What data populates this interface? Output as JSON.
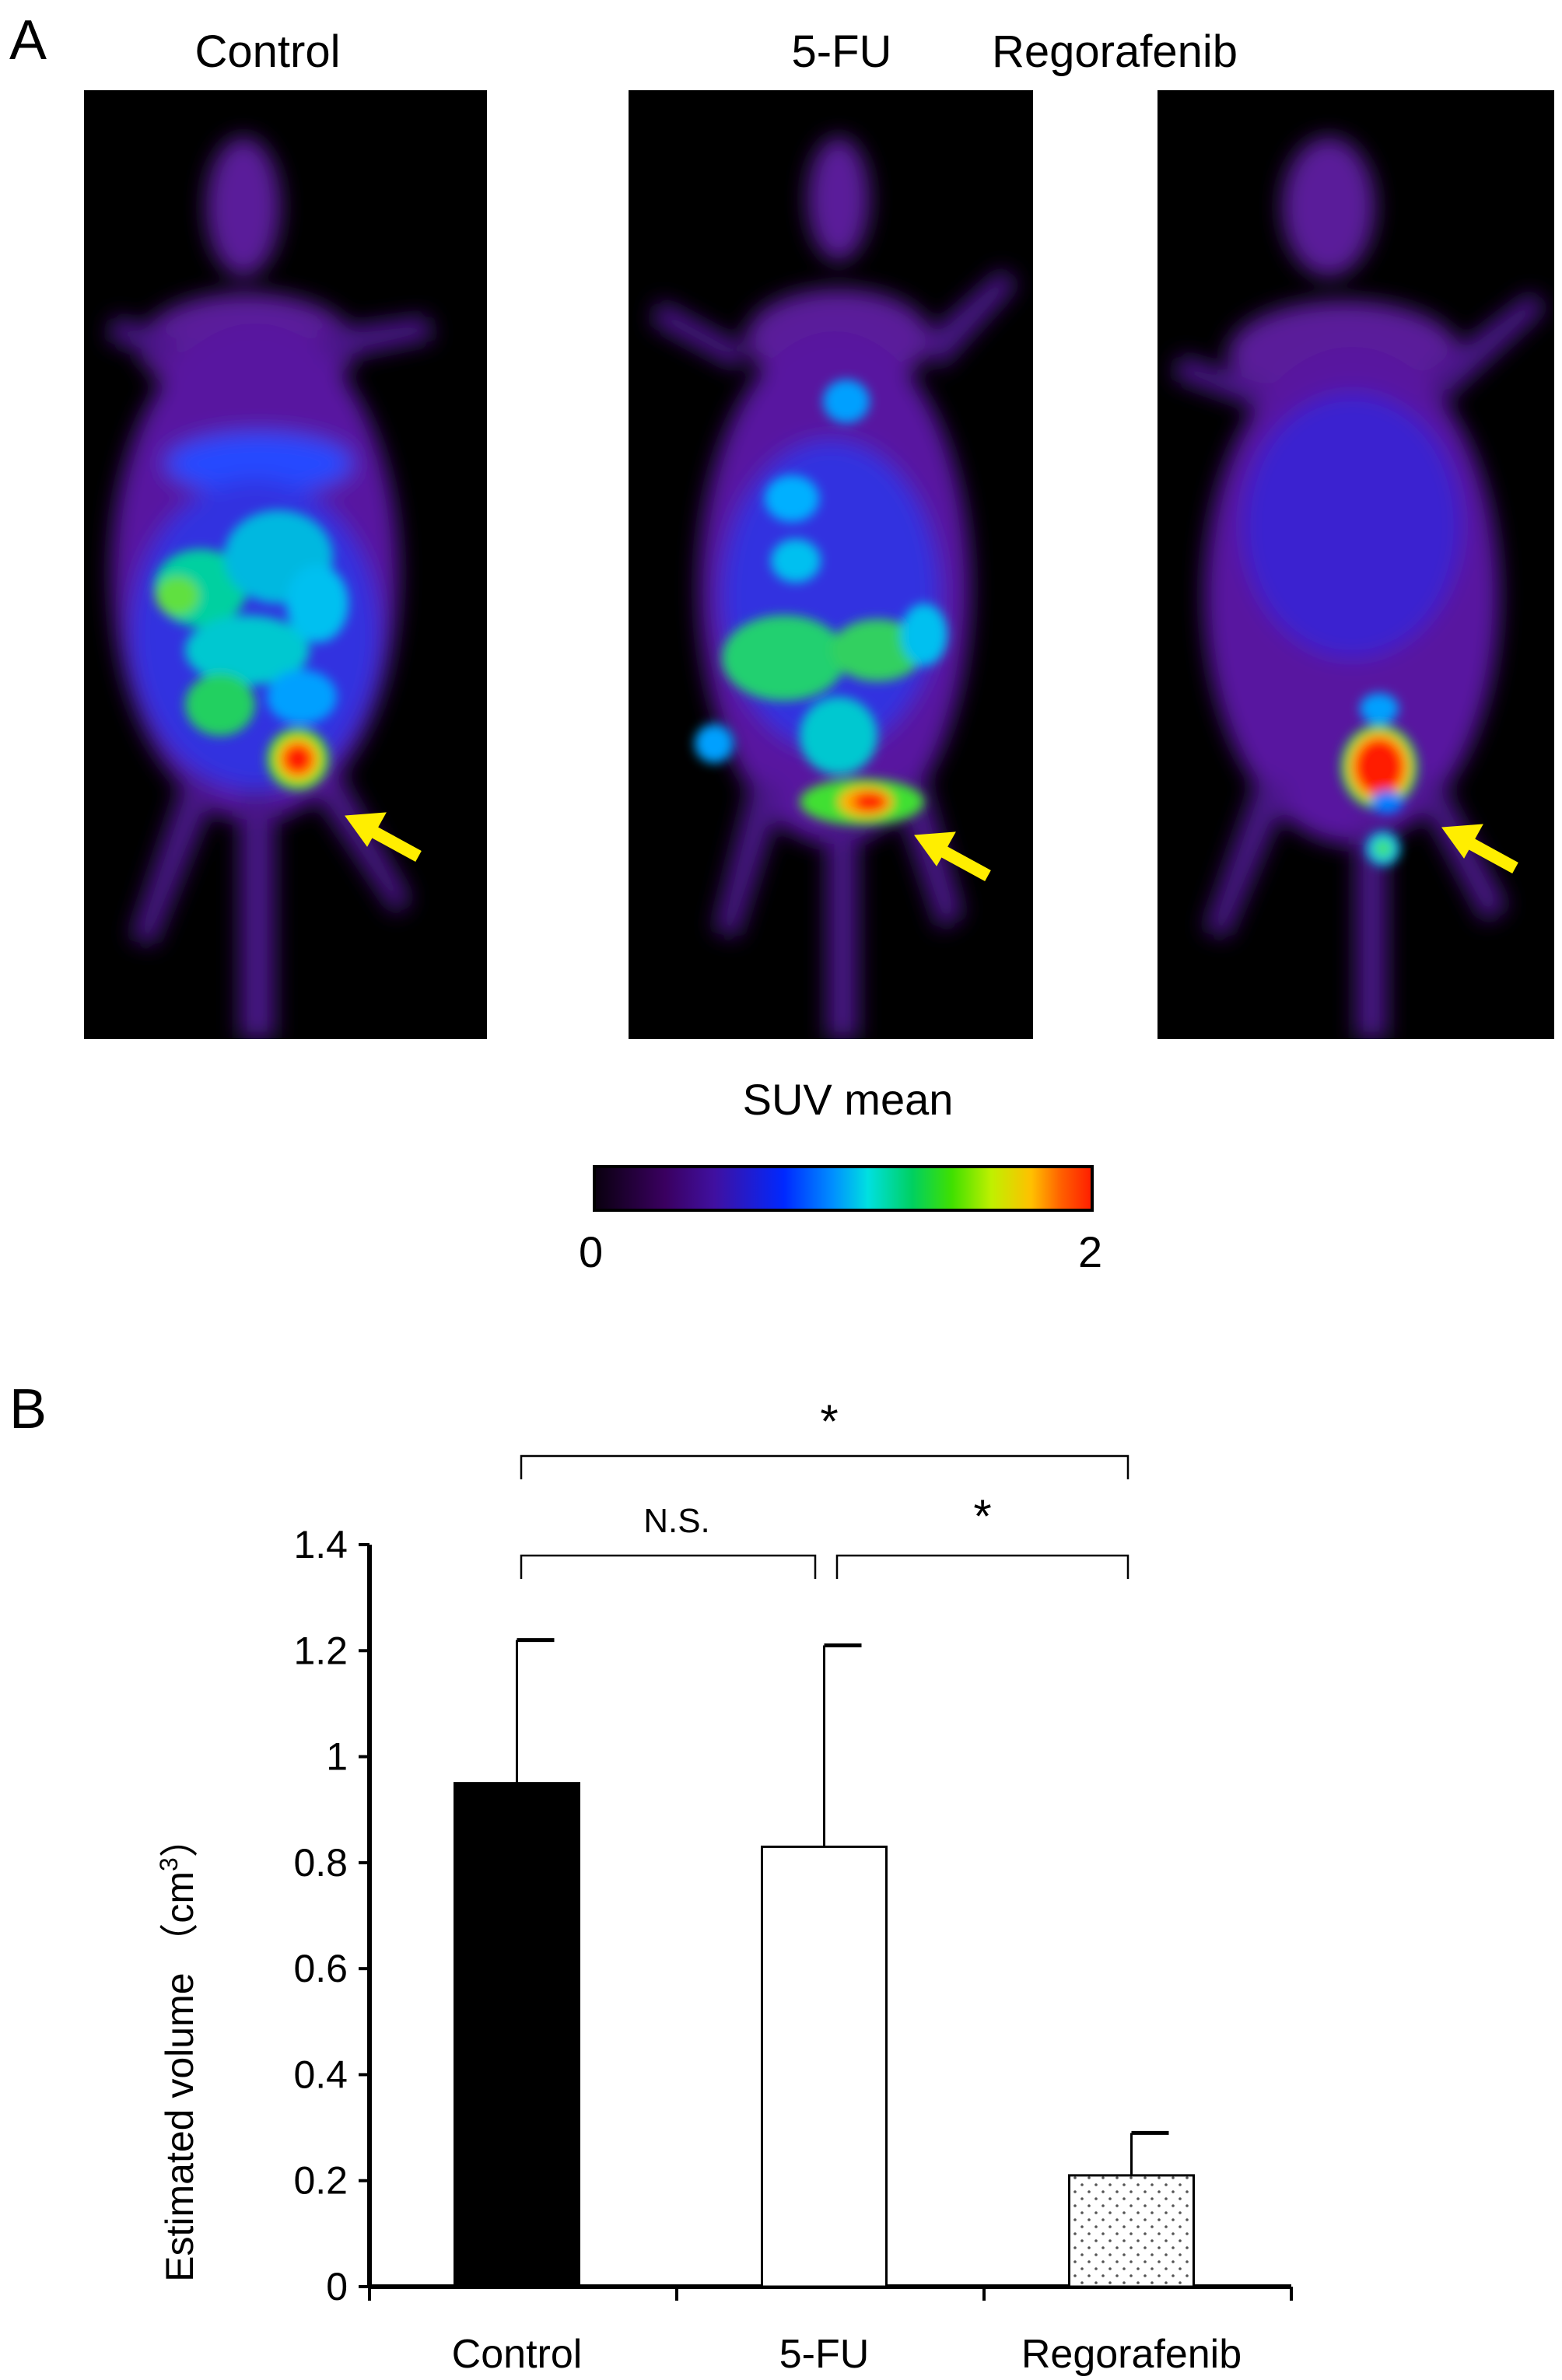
{
  "panel_a": {
    "letter": "A",
    "images": [
      {
        "title": "Control"
      },
      {
        "title": "5-FU"
      },
      {
        "title": "Regorafenib"
      }
    ],
    "colorbar": {
      "title": "SUV mean",
      "min_label": "0",
      "max_label": "2"
    },
    "arrow_color": "#ffee00"
  },
  "panel_b": {
    "letter": "B",
    "significance": {
      "top": "*",
      "left_pair": "N.S.",
      "right_pair": "*"
    }
  },
  "chart_data": {
    "type": "bar",
    "categories": [
      "Control",
      "5-FU",
      "Regorafenib"
    ],
    "series": [
      {
        "values": [
          0.95,
          0.83,
          0.21
        ],
        "error_upper": [
          1.22,
          1.21,
          0.29
        ],
        "fills": [
          "#000000",
          "#ffffff",
          "dotted"
        ]
      }
    ],
    "ylabel_prefix": "Estimated volume （cm",
    "ylabel_sup": "3",
    "ylabel_suffix": "）",
    "xlabel": "",
    "ylim": [
      0,
      1.4
    ],
    "yticks": [
      "0",
      "0.2",
      "0.4",
      "0.6",
      "0.8",
      "1",
      "1.2",
      "1.4"
    ],
    "grid": false
  }
}
